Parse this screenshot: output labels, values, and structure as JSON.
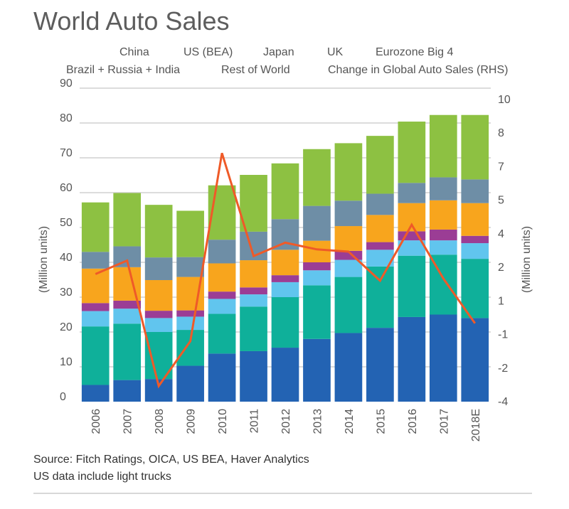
{
  "chart_data": {
    "type": "bar",
    "stacked": true,
    "title": "World Auto Sales",
    "categories": [
      "2006",
      "2007",
      "2008",
      "2009",
      "2010",
      "2011",
      "2012",
      "2013",
      "2014",
      "2015",
      "2016",
      "2017",
      "2018E"
    ],
    "ylabel_left": "(Million units)",
    "ylabel_right": "(Million units)",
    "ylim_left": [
      0,
      90
    ],
    "yticks_left": [
      "0",
      "10",
      "20",
      "30",
      "40",
      "50",
      "60",
      "70",
      "80",
      "90"
    ],
    "ylim_right": [
      -4,
      10
    ],
    "yticks_right": [
      "-4",
      "-2",
      "-1",
      "1",
      "2",
      "4",
      "5",
      "7",
      "8",
      "10"
    ],
    "yticks_right_values": [
      -4,
      -2.5,
      -1,
      0.5,
      2,
      3.5,
      5,
      6.5,
      8,
      9.5
    ],
    "grid": true,
    "legend_placement": "top",
    "series": [
      {
        "name": "China",
        "color": "#2363b3",
        "values": [
          4.8,
          6.2,
          6.5,
          10.3,
          13.8,
          14.5,
          15.5,
          18.0,
          19.7,
          21.2,
          24.3,
          25.0,
          24.0
        ]
      },
      {
        "name": "Rest of World",
        "color": "#0fb09a",
        "values": [
          16.8,
          16.2,
          13.5,
          10.3,
          11.4,
          12.8,
          14.5,
          15.4,
          16.1,
          17.6,
          17.6,
          17.2,
          17.0
        ]
      },
      {
        "name": "US (BEA)",
        "color": "#61c5ee",
        "values": [
          4.4,
          4.3,
          4.0,
          3.8,
          4.3,
          3.5,
          4.3,
          4.3,
          4.9,
          4.8,
          4.4,
          4.1,
          4.5
        ]
      },
      {
        "name": "Brazil + Russia + India",
        "color": "#9b3d95",
        "values": [
          2.3,
          2.3,
          2.1,
          1.8,
          2.1,
          2.0,
          2.0,
          2.3,
          2.6,
          2.2,
          2.6,
          3.1,
          2.1
        ]
      },
      {
        "name": "Japan",
        "color": "#f8a51d",
        "values": [
          9.9,
          9.6,
          8.8,
          9.6,
          8.1,
          7.8,
          7.3,
          6.2,
          7.1,
          7.8,
          8.1,
          8.4,
          9.4
        ]
      },
      {
        "name": "Eurozone Big 4",
        "color": "#6e8ea6",
        "values": [
          4.8,
          6.0,
          6.5,
          5.7,
          6.8,
          8.2,
          8.8,
          10.0,
          7.3,
          6.1,
          5.8,
          6.6,
          6.8
        ]
      },
      {
        "name": "UK",
        "color": "#8dc142",
        "values": [
          14.2,
          15.3,
          15.1,
          13.3,
          15.6,
          16.3,
          16.0,
          16.3,
          16.5,
          16.6,
          17.6,
          17.9,
          18.5
        ]
      }
    ],
    "line_series": {
      "name": "Change in Global Auto Sales (RHS)",
      "color": "#ef5a28",
      "axis": "right",
      "values": [
        1.7,
        2.3,
        -3.3,
        -1.3,
        7.1,
        2.5,
        3.1,
        2.8,
        2.7,
        1.4,
        3.9,
        1.5,
        -0.5
      ]
    },
    "legend": {
      "row1": [
        "China",
        "US (BEA)",
        "Japan",
        "UK",
        "Eurozone Big 4"
      ],
      "row2": [
        "Brazil + Russia + India",
        "Rest of World",
        "Change in Global Auto Sales (RHS)"
      ]
    }
  },
  "source_note": "Source: Fitch Ratings, OICA, US BEA, Haver Analytics",
  "footnote": "US data include light trucks"
}
